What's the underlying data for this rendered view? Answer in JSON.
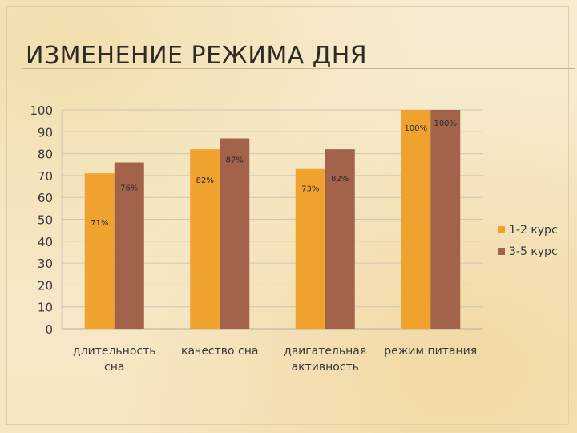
{
  "slide": {
    "title": "ИЗМЕНЕНИЕ РЕЖИМА ДНЯ"
  },
  "colors": {
    "series1": "#f0a22e",
    "series2": "#a3634b",
    "grid": "#cfc6b3",
    "text": "#3a3a3a"
  },
  "chart_data": {
    "type": "bar",
    "title": "",
    "xlabel": "",
    "ylabel": "",
    "ylim": [
      0,
      100
    ],
    "yticks": [
      0,
      10,
      20,
      30,
      40,
      50,
      60,
      70,
      80,
      90,
      100
    ],
    "grid": true,
    "legend_position": "right",
    "categories": [
      [
        "длительность",
        "сна"
      ],
      [
        "качество сна"
      ],
      [
        "двигательная",
        "активность"
      ],
      [
        "режим питания"
      ]
    ],
    "series": [
      {
        "name": "1-2 курс",
        "values": [
          71,
          82,
          73,
          100
        ],
        "labels": [
          "71%",
          "82%",
          "73%",
          "100%"
        ]
      },
      {
        "name": "3-5 курс",
        "values": [
          76,
          87,
          82,
          100
        ],
        "labels": [
          "76%",
          "87%",
          "82%",
          "100%"
        ]
      }
    ]
  }
}
